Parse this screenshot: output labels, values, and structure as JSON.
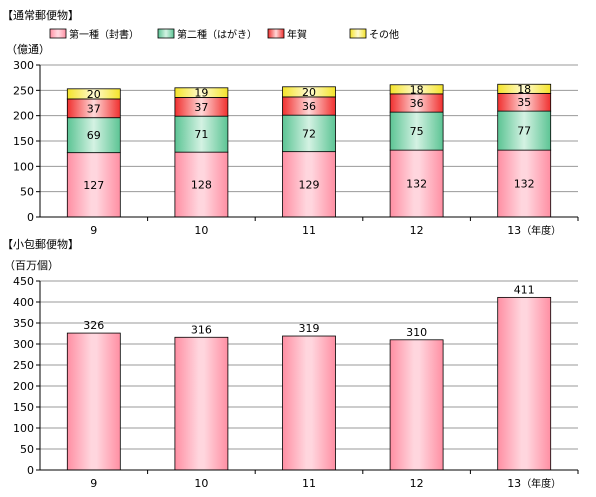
{
  "chart_data": [
    {
      "type": "bar",
      "stacked": true,
      "title": "【通常郵便物】",
      "ylabel": "（億通）",
      "ylim": [
        0,
        300
      ],
      "yticks": [
        0,
        50,
        100,
        150,
        200,
        250,
        300
      ],
      "categories": [
        "9",
        "10",
        "11",
        "12",
        "13"
      ],
      "x_unit_suffix": "（年度）",
      "legend_position": "top",
      "grid": true,
      "series": [
        {
          "name": "第一種（封書）",
          "values": [
            127,
            128,
            129,
            132,
            132
          ],
          "color": "#ff8fa3"
        },
        {
          "name": "第二種（はがき）",
          "values": [
            69,
            71,
            72,
            75,
            77
          ],
          "color": "#5cc494"
        },
        {
          "name": "年賀",
          "values": [
            37,
            37,
            36,
            36,
            35
          ],
          "color": "#f0302f"
        },
        {
          "name": "その他",
          "values": [
            20,
            19,
            20,
            18,
            18
          ],
          "color": "#f4e32a"
        }
      ]
    },
    {
      "type": "bar",
      "stacked": false,
      "title": "【小包郵便物】",
      "ylabel": "（百万個）",
      "ylim": [
        0,
        450
      ],
      "yticks": [
        0,
        50,
        100,
        150,
        200,
        250,
        300,
        350,
        400,
        450
      ],
      "categories": [
        "9",
        "10",
        "11",
        "12",
        "13"
      ],
      "x_unit_suffix": "（年度）",
      "grid": true,
      "series": [
        {
          "values": [
            326,
            316,
            319,
            310,
            411
          ],
          "color": "#ff8fa3"
        }
      ]
    }
  ]
}
